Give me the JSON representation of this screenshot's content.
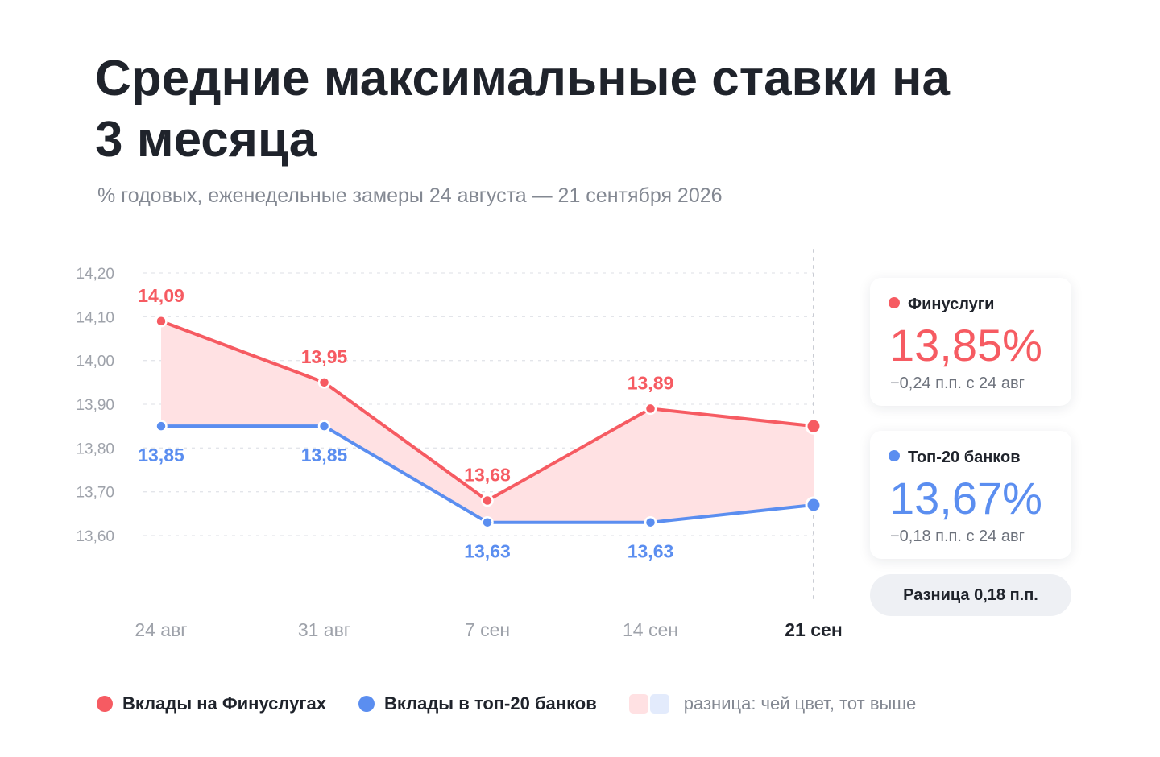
{
  "title": "Средние максимальные ставки на 3 месяца",
  "subtitle": "% годовых, еженедельные замеры 24 августа — 21 сентября 2026",
  "colors": {
    "finuslugi": "#f65b62",
    "top20": "#5b8ef0",
    "fill_red": "#ffe1e3",
    "fill_blue": "#e3ebfc",
    "grid": "#e3e5ea",
    "tick": "#9ea2aa",
    "text": "#1f232b",
    "muted": "#838892"
  },
  "chart_data": {
    "type": "line",
    "categories": [
      "24 авг",
      "31 авг",
      "7 сен",
      "14 сен",
      "21 сен"
    ],
    "highlight_category": "21 сен",
    "series": [
      {
        "key": "finuslugi",
        "name": "Вклады на Финуслугах",
        "values": [
          14.09,
          13.95,
          13.68,
          13.89,
          13.85
        ],
        "labels": [
          "14,09",
          "13,95",
          "13,68",
          "13,89",
          ""
        ]
      },
      {
        "key": "top20",
        "name": "Вклады в топ-20 банков",
        "values": [
          13.85,
          13.85,
          13.63,
          13.63,
          13.67
        ],
        "labels": [
          "13,85",
          "13,85",
          "13,63",
          "13,63",
          ""
        ]
      }
    ],
    "y_ticks": [
      14.2,
      14.1,
      14.0,
      13.9,
      13.8,
      13.7,
      13.6
    ],
    "y_tick_labels": [
      "14,20",
      "14,10",
      "14,00",
      "13,90",
      "13,80",
      "13,70",
      "13,60"
    ],
    "ylim": [
      13.6,
      14.2
    ],
    "grid": true,
    "difference_fill": true
  },
  "cards": {
    "finuslugi": {
      "label": "Финуслуги",
      "value": "13,85%",
      "change": "−0,24 п.п. с 24 авг"
    },
    "top20": {
      "label": "Топ-20 банков",
      "value": "13,67%",
      "change": "−0,18 п.п. с 24 авг"
    },
    "difference": "Разница 0,18 п.п."
  },
  "legend": {
    "finuslugi": "Вклады на Финуслугах",
    "top20": "Вклады в топ-20 банков",
    "difference_note": "разница: чей цвет, тот выше"
  }
}
